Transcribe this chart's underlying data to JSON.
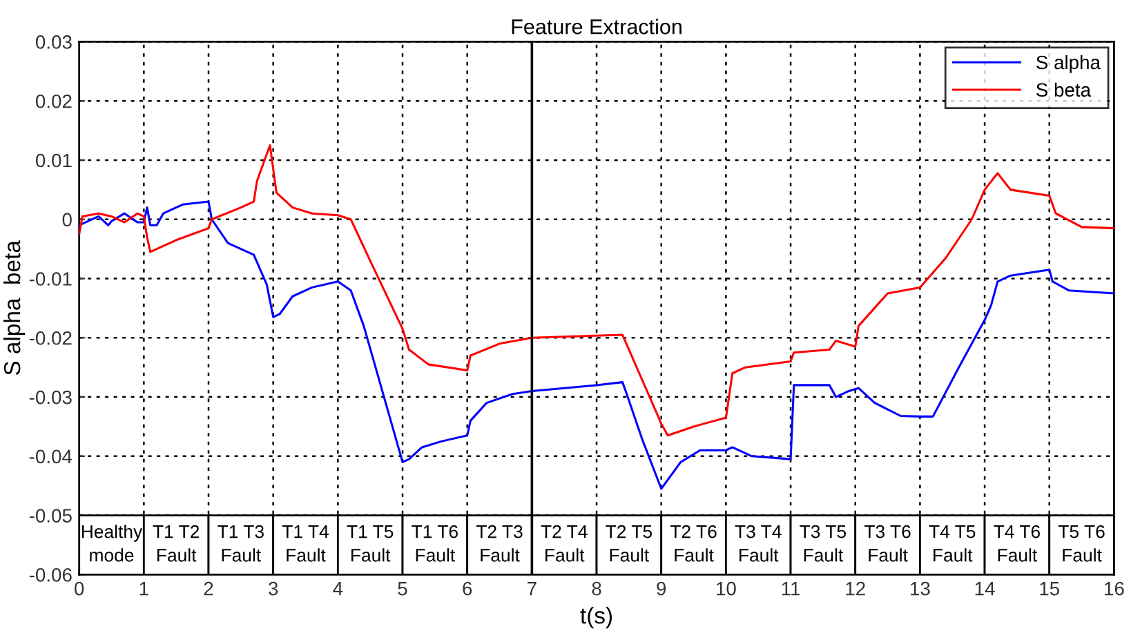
{
  "chart_data": {
    "type": "line",
    "title": "Feature Extraction",
    "xlabel": "t(s)",
    "ylabel": "S alpha  beta",
    "xlim": [
      0,
      16
    ],
    "ylim": [
      -0.06,
      0.03
    ],
    "xticks": [
      0,
      1,
      2,
      3,
      4,
      5,
      6,
      7,
      8,
      9,
      10,
      11,
      12,
      13,
      14,
      15,
      16
    ],
    "yticks": [
      -0.06,
      -0.05,
      -0.04,
      -0.03,
      -0.02,
      -0.01,
      0,
      0.01,
      0.02,
      0.03
    ],
    "grid": true,
    "legend": "top right",
    "line_style": "solid",
    "marker": "none",
    "series": [
      {
        "name": "S alpha",
        "color": "#0000ff",
        "x": [
          0,
          0.3,
          0.45,
          0.5,
          0.7,
          0.9,
          1.0,
          1.05,
          1.1,
          1.2,
          1.3,
          1.6,
          2.0,
          2.05,
          2.3,
          2.7,
          2.9,
          3.0,
          3.1,
          3.3,
          3.6,
          4.0,
          4.2,
          4.4,
          5.0,
          5.1,
          5.3,
          5.6,
          6.0,
          6.05,
          6.3,
          6.7,
          7.0,
          7.5,
          8.0,
          8.4,
          8.45,
          8.7,
          9.0,
          9.1,
          9.3,
          9.6,
          10.0,
          10.1,
          10.4,
          11.0,
          11.05,
          11.6,
          11.7,
          11.9,
          12.05,
          12.3,
          12.7,
          13.0,
          13.2,
          13.6,
          14.0,
          14.1,
          14.2,
          14.4,
          15.0,
          15.05,
          15.3,
          16.0
        ],
        "values": [
          -0.001,
          0.0005,
          -0.001,
          -0.0003,
          0.001,
          -0.0005,
          -0.0005,
          0.002,
          -0.001,
          -0.001,
          0.001,
          0.0025,
          0.003,
          0.0,
          -0.004,
          -0.006,
          -0.011,
          -0.0165,
          -0.016,
          -0.013,
          -0.0115,
          -0.0105,
          -0.012,
          -0.018,
          -0.041,
          -0.0405,
          -0.0385,
          -0.0375,
          -0.0365,
          -0.034,
          -0.031,
          -0.0295,
          -0.029,
          -0.0285,
          -0.028,
          -0.0275,
          -0.029,
          -0.037,
          -0.0455,
          -0.044,
          -0.041,
          -0.039,
          -0.039,
          -0.0385,
          -0.04,
          -0.0405,
          -0.028,
          -0.028,
          -0.03,
          -0.029,
          -0.0285,
          -0.031,
          -0.0332,
          -0.0333,
          -0.0333,
          -0.025,
          -0.017,
          -0.0145,
          -0.0105,
          -0.0095,
          -0.0085,
          -0.0105,
          -0.012,
          -0.0125
        ]
      },
      {
        "name": "S beta",
        "color": "#ff0000",
        "x": [
          0,
          0.05,
          0.3,
          0.5,
          0.7,
          0.9,
          1.0,
          1.05,
          1.1,
          1.5,
          2.0,
          2.05,
          2.5,
          2.7,
          2.75,
          2.95,
          3.05,
          3.3,
          3.6,
          4.0,
          4.2,
          4.5,
          5.0,
          5.1,
          5.4,
          6.0,
          6.05,
          6.5,
          7.0,
          8.4,
          8.7,
          9.0,
          9.1,
          9.5,
          10.0,
          10.1,
          10.3,
          11.0,
          11.05,
          11.6,
          11.7,
          12.0,
          12.05,
          12.5,
          13.0,
          13.4,
          13.8,
          14.0,
          14.2,
          14.4,
          15.0,
          15.1,
          15.5,
          16.0
        ],
        "values": [
          -0.0025,
          0.0005,
          0.001,
          0.0005,
          -0.0005,
          0.001,
          0.0005,
          -0.003,
          -0.0055,
          -0.0035,
          -0.0015,
          0.0,
          0.002,
          0.003,
          0.0065,
          0.0125,
          0.0045,
          0.002,
          0.001,
          0.0007,
          0.0,
          -0.007,
          -0.0185,
          -0.022,
          -0.0245,
          -0.0255,
          -0.023,
          -0.021,
          -0.02,
          -0.0195,
          -0.027,
          -0.0345,
          -0.0365,
          -0.035,
          -0.0335,
          -0.026,
          -0.025,
          -0.024,
          -0.0225,
          -0.022,
          -0.0205,
          -0.0215,
          -0.018,
          -0.0125,
          -0.0115,
          -0.0065,
          0.0,
          0.005,
          0.0078,
          0.005,
          0.004,
          0.001,
          -0.0013,
          -0.0015
        ]
      }
    ],
    "ref_lines": [
      {
        "axis": "x",
        "value": 7,
        "color": "#000000",
        "line_style": "solid"
      }
    ],
    "bands": [
      {
        "axis": "x",
        "from": 0,
        "to": 1,
        "label": "Healthy\nmode"
      },
      {
        "axis": "x",
        "from": 1,
        "to": 2,
        "label": "T1 T2\nFault"
      },
      {
        "axis": "x",
        "from": 2,
        "to": 3,
        "label": "T1 T3\nFault"
      },
      {
        "axis": "x",
        "from": 3,
        "to": 4,
        "label": "T1 T4\nFault"
      },
      {
        "axis": "x",
        "from": 4,
        "to": 5,
        "label": "T1 T5\nFault"
      },
      {
        "axis": "x",
        "from": 5,
        "to": 6,
        "label": "T1 T6\nFault"
      },
      {
        "axis": "x",
        "from": 6,
        "to": 7,
        "label": "T2 T3\nFault"
      },
      {
        "axis": "x",
        "from": 7,
        "to": 8,
        "label": "T2 T4\nFault"
      },
      {
        "axis": "x",
        "from": 8,
        "to": 9,
        "label": "T2 T5\nFault"
      },
      {
        "axis": "x",
        "from": 9,
        "to": 10,
        "label": "T2 T6\nFault"
      },
      {
        "axis": "x",
        "from": 10,
        "to": 11,
        "label": "T3 T4\nFault"
      },
      {
        "axis": "x",
        "from": 11,
        "to": 12,
        "label": "T3 T5\nFault"
      },
      {
        "axis": "x",
        "from": 12,
        "to": 13,
        "label": "T3 T6\nFault"
      },
      {
        "axis": "x",
        "from": 13,
        "to": 14,
        "label": "T4 T5\nFault"
      },
      {
        "axis": "x",
        "from": 14,
        "to": 15,
        "label": "T4 T6\nFault"
      },
      {
        "axis": "x",
        "from": 15,
        "to": 16,
        "label": "T5 T6\nFault"
      }
    ]
  }
}
